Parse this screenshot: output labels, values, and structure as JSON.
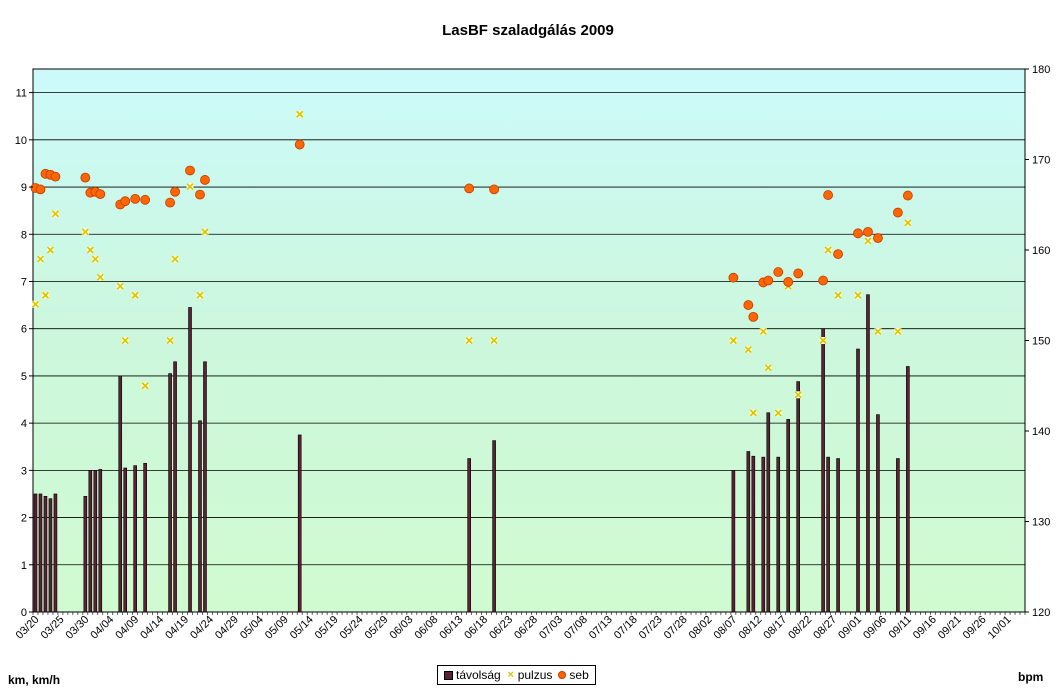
{
  "chart_data": {
    "type": "bar",
    "title": "LasBF szaladgálás 2009",
    "ylabel_left": "km, km/h",
    "ylabel_right": "bpm",
    "ylim_left": [
      0,
      11.5
    ],
    "ylim_right": [
      120,
      180
    ],
    "yticks_left": [
      "0",
      "1",
      "2",
      "3",
      "4",
      "5",
      "6",
      "7",
      "8",
      "9",
      "10",
      "11"
    ],
    "yticks_right": [
      "120",
      "130",
      "140",
      "150",
      "160",
      "170",
      "180"
    ],
    "xlim": [
      "03/20",
      "10/04"
    ],
    "xticks": [
      "03/20",
      "03/25",
      "03/30",
      "04/04",
      "04/09",
      "04/14",
      "04/19",
      "04/24",
      "04/29",
      "05/04",
      "05/09",
      "05/14",
      "05/19",
      "05/24",
      "05/29",
      "06/03",
      "06/08",
      "06/13",
      "06/18",
      "06/23",
      "06/28",
      "07/03",
      "07/08",
      "07/13",
      "07/18",
      "07/23",
      "07/28",
      "08/02",
      "08/07",
      "08/12",
      "08/17",
      "08/22",
      "08/27",
      "09/01",
      "09/06",
      "09/11",
      "09/16",
      "09/21",
      "09/26",
      "10/01"
    ],
    "grid": true,
    "legend_position": "bottom",
    "series": [
      {
        "name": "távolság",
        "kind": "bar",
        "axis": "left",
        "color": "#5a2333",
        "points": [
          [
            "03/20",
            2.5
          ],
          [
            "03/21",
            2.5
          ],
          [
            "03/22",
            2.45
          ],
          [
            "03/23",
            2.4
          ],
          [
            "03/24",
            2.5
          ],
          [
            "03/30",
            2.45
          ],
          [
            "03/31",
            3.0
          ],
          [
            "04/01",
            3.0
          ],
          [
            "04/02",
            3.02
          ],
          [
            "04/06",
            5.0
          ],
          [
            "04/07",
            3.05
          ],
          [
            "04/09",
            3.1
          ],
          [
            "04/11",
            3.15
          ],
          [
            "04/16",
            5.05
          ],
          [
            "04/17",
            5.3
          ],
          [
            "04/20",
            6.45
          ],
          [
            "04/22",
            4.05
          ],
          [
            "04/23",
            5.3
          ],
          [
            "05/12",
            3.75
          ],
          [
            "06/15",
            3.25
          ],
          [
            "06/20",
            3.63
          ],
          [
            "08/07",
            3.0
          ],
          [
            "08/10",
            3.4
          ],
          [
            "08/11",
            3.3
          ],
          [
            "08/13",
            3.28
          ],
          [
            "08/14",
            4.22
          ],
          [
            "08/16",
            3.28
          ],
          [
            "08/18",
            4.08
          ],
          [
            "08/20",
            4.88
          ],
          [
            "08/25",
            6.0
          ],
          [
            "08/26",
            3.28
          ],
          [
            "08/28",
            3.25
          ],
          [
            "09/01",
            5.57
          ],
          [
            "09/03",
            6.72
          ],
          [
            "09/05",
            4.18
          ],
          [
            "09/09",
            3.25
          ],
          [
            "09/11",
            5.2
          ]
        ]
      },
      {
        "name": "pulzus",
        "kind": "marker-x",
        "axis": "right",
        "color": "#d6c600",
        "points": [
          [
            "03/20",
            154
          ],
          [
            "03/21",
            159
          ],
          [
            "03/22",
            155
          ],
          [
            "03/23",
            160
          ],
          [
            "03/24",
            164
          ],
          [
            "03/30",
            162
          ],
          [
            "03/31",
            160
          ],
          [
            "04/01",
            159
          ],
          [
            "04/02",
            157
          ],
          [
            "04/06",
            156
          ],
          [
            "04/07",
            150
          ],
          [
            "04/09",
            155
          ],
          [
            "04/11",
            145
          ],
          [
            "04/16",
            150
          ],
          [
            "04/17",
            159
          ],
          [
            "04/20",
            167
          ],
          [
            "04/22",
            155
          ],
          [
            "04/23",
            162
          ],
          [
            "05/12",
            175
          ],
          [
            "06/15",
            150
          ],
          [
            "06/20",
            150
          ],
          [
            "08/07",
            150
          ],
          [
            "08/10",
            149
          ],
          [
            "08/11",
            142
          ],
          [
            "08/13",
            151
          ],
          [
            "08/14",
            147
          ],
          [
            "08/16",
            142
          ],
          [
            "08/18",
            156
          ],
          [
            "08/20",
            144
          ],
          [
            "08/25",
            150
          ],
          [
            "08/26",
            160
          ],
          [
            "08/28",
            155
          ],
          [
            "09/01",
            155
          ],
          [
            "09/03",
            161
          ],
          [
            "09/05",
            151
          ],
          [
            "09/09",
            151
          ],
          [
            "09/11",
            163
          ]
        ]
      },
      {
        "name": "seb",
        "kind": "marker-dot",
        "axis": "left",
        "color": "#ff6600",
        "points": [
          [
            "03/20",
            8.98
          ],
          [
            "03/21",
            8.95
          ],
          [
            "03/22",
            9.28
          ],
          [
            "03/23",
            9.26
          ],
          [
            "03/24",
            9.22
          ],
          [
            "03/30",
            9.2
          ],
          [
            "03/31",
            8.88
          ],
          [
            "04/01",
            8.9
          ],
          [
            "04/02",
            8.85
          ],
          [
            "04/06",
            8.63
          ],
          [
            "04/07",
            8.7
          ],
          [
            "04/09",
            8.75
          ],
          [
            "04/11",
            8.73
          ],
          [
            "04/16",
            8.67
          ],
          [
            "04/17",
            8.9
          ],
          [
            "04/20",
            9.35
          ],
          [
            "04/22",
            8.84
          ],
          [
            "04/23",
            9.15
          ],
          [
            "05/12",
            9.9
          ],
          [
            "06/15",
            8.97
          ],
          [
            "06/20",
            8.95
          ],
          [
            "08/07",
            7.08
          ],
          [
            "08/10",
            6.5
          ],
          [
            "08/11",
            6.25
          ],
          [
            "08/13",
            6.98
          ],
          [
            "08/14",
            7.02
          ],
          [
            "08/16",
            7.2
          ],
          [
            "08/18",
            6.99
          ],
          [
            "08/20",
            7.17
          ],
          [
            "08/25",
            7.02
          ],
          [
            "08/26",
            8.83
          ],
          [
            "08/28",
            7.58
          ],
          [
            "09/01",
            8.02
          ],
          [
            "09/03",
            8.05
          ],
          [
            "09/05",
            7.92
          ],
          [
            "09/09",
            8.46
          ],
          [
            "09/11",
            8.82
          ]
        ]
      }
    ]
  }
}
